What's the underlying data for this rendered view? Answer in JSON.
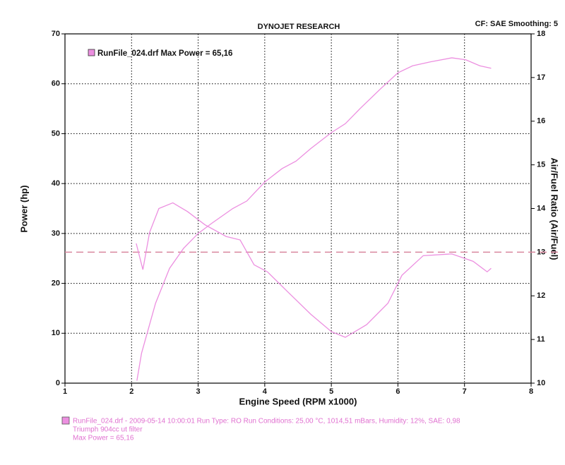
{
  "chart_data": {
    "type": "line",
    "title": "DYNOJET RESEARCH",
    "subtitle": "CF: SAE  Smoothing: 5",
    "xlabel": "Engine Speed (RPM x1000)",
    "ylabel": "Power (hp)",
    "y2label": "Air/Fuel Ratio (Air/Fuel)",
    "xlim": [
      1,
      8
    ],
    "xticks": [
      1,
      2,
      3,
      4,
      5,
      6,
      7,
      8
    ],
    "ylim": [
      0,
      70
    ],
    "yticks": [
      0,
      10,
      20,
      30,
      40,
      50,
      60,
      70
    ],
    "y2lim": [
      10,
      18
    ],
    "y2ticks": [
      10,
      11,
      12,
      13,
      14,
      15,
      16,
      17,
      18
    ],
    "grid": true,
    "hline_y2": 13,
    "hline_color": "#d9869e",
    "series": [
      {
        "name": "RunFile_024.drf Max Power = 65,16",
        "color": "#ec8fe0",
        "x": [
          2.08,
          2.15,
          2.36,
          2.57,
          2.78,
          3.0,
          3.2,
          3.52,
          3.73,
          4.0,
          4.26,
          4.47,
          4.69,
          5.0,
          5.21,
          5.43,
          5.74,
          6.0,
          6.22,
          6.49,
          6.81,
          7.02,
          7.23,
          7.4
        ],
        "values": [
          0.5,
          6,
          16,
          23,
          27,
          30,
          32,
          35,
          36.5,
          40.3,
          43,
          44.5,
          47,
          50.2,
          52,
          55,
          59,
          62.2,
          63.6,
          64.4,
          65.2,
          64.8,
          63.6,
          63.1
        ]
      },
      {
        "color": "#ec8fe0",
        "axis": "y2",
        "x": [
          2.07,
          2.17,
          2.27,
          2.41,
          2.62,
          2.84,
          3.1,
          3.42,
          3.63,
          3.84,
          4.04,
          4.36,
          4.69,
          5.0,
          5.21,
          5.53,
          5.85,
          6.06,
          6.38,
          6.81,
          7.13,
          7.34,
          7.4
        ],
        "values": [
          13.2,
          12.6,
          13.45,
          14.0,
          14.13,
          13.93,
          13.63,
          13.36,
          13.28,
          12.71,
          12.55,
          12.07,
          11.58,
          11.18,
          11.05,
          11.34,
          11.83,
          12.47,
          12.92,
          12.96,
          12.79,
          12.55,
          12.63
        ]
      }
    ]
  },
  "footer": {
    "lines": [
      "RunFile_024.drf - 2009-05-14 10:00:01  Run Type: RO  Run Conditions: 25,00 °C, 1014,51 mBars,  Humidity: 12%,  SAE: 0,98",
      "Triumph 904cc ut filter",
      "Max Power = 65,16"
    ]
  }
}
